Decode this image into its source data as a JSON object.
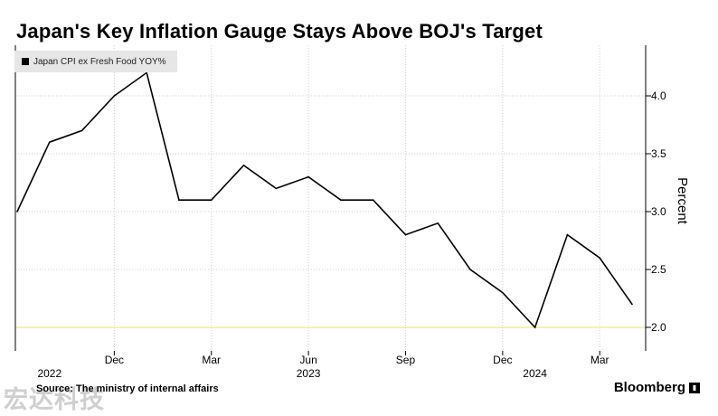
{
  "chart_data": {
    "type": "line",
    "title": "Japan's Key Inflation Gauge Stays Above BOJ's Target",
    "ylabel": "Percent",
    "legend": "top-left",
    "grid": true,
    "ylim": [
      1.8,
      4.4
    ],
    "yticks": [
      "4.0",
      "3.5",
      "3.0",
      "2.5",
      "2.0"
    ],
    "ytick_values": [
      4.0,
      3.5,
      3.0,
      2.5,
      2.0
    ],
    "target_line": 2.0,
    "series": [
      {
        "name": "Japan CPI ex Fresh Food YOY%",
        "color": "#000000",
        "x": [
          "2022-09",
          "2022-10",
          "2022-11",
          "2022-12",
          "2023-01",
          "2023-02",
          "2023-03",
          "2023-04",
          "2023-05",
          "2023-06",
          "2023-07",
          "2023-08",
          "2023-09",
          "2023-10",
          "2023-11",
          "2023-12",
          "2024-01",
          "2024-02",
          "2024-03",
          "2024-04"
        ],
        "values": [
          3.0,
          3.6,
          3.7,
          4.0,
          4.2,
          3.1,
          3.1,
          3.4,
          3.2,
          3.3,
          3.1,
          3.1,
          2.8,
          2.9,
          2.5,
          2.3,
          2.0,
          2.8,
          2.6,
          2.2
        ]
      }
    ],
    "month_ticks": [
      {
        "month": "2022-12",
        "label": "Dec"
      },
      {
        "month": "2023-03",
        "label": "Mar"
      },
      {
        "month": "2023-06",
        "label": "Jun"
      },
      {
        "month": "2023-09",
        "label": "Sep"
      },
      {
        "month": "2023-12",
        "label": "Dec"
      },
      {
        "month": "2024-03",
        "label": "Mar"
      }
    ],
    "year_labels": [
      {
        "month": "2022-10",
        "label": "2022"
      },
      {
        "month": "2023-06",
        "label": "2023"
      },
      {
        "month": "2024-01",
        "label": "2024"
      }
    ],
    "colors": {
      "line": "#000000",
      "target": "#f0e68c",
      "grid": "#cfcfcf"
    }
  },
  "footer": {
    "source": "Source: The ministry of internal affairs",
    "brand": "Bloomberg",
    "watermark": "宏达科技"
  }
}
